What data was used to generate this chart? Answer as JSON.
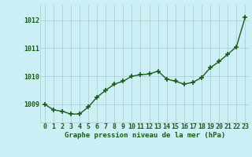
{
  "x": [
    0,
    1,
    2,
    3,
    4,
    5,
    6,
    7,
    8,
    9,
    10,
    11,
    12,
    13,
    14,
    15,
    16,
    17,
    18,
    19,
    20,
    21,
    22,
    23
  ],
  "y": [
    1009.0,
    1008.8,
    1008.75,
    1008.65,
    1008.65,
    1008.9,
    1009.25,
    1009.5,
    1009.72,
    1009.82,
    1010.0,
    1010.05,
    1010.08,
    1010.18,
    1009.9,
    1009.82,
    1009.72,
    1009.78,
    1009.95,
    1010.3,
    1010.52,
    1010.78,
    1011.05,
    1012.1
  ],
  "line_color": "#1a5c1a",
  "marker": "+",
  "markersize": 4,
  "markeredgewidth": 1.2,
  "linewidth": 1.0,
  "bg_color": "#cceef5",
  "grid_color": "#b0c8cc",
  "xlabel": "Graphe pression niveau de la mer (hPa)",
  "xlabel_color": "#1a5c1a",
  "xlabel_fontsize": 6.5,
  "xtick_labels": [
    "0",
    "1",
    "2",
    "3",
    "4",
    "5",
    "6",
    "7",
    "8",
    "9",
    "10",
    "11",
    "12",
    "13",
    "14",
    "15",
    "16",
    "17",
    "18",
    "19",
    "20",
    "21",
    "22",
    "23"
  ],
  "ytick_labels": [
    "1009",
    "1010",
    "1011",
    "1012"
  ],
  "ytick_values": [
    1009,
    1010,
    1011,
    1012
  ],
  "ylim": [
    1008.35,
    1012.55
  ],
  "xlim": [
    -0.5,
    23.5
  ],
  "tick_color": "#1a5c1a",
  "tick_fontsize": 6.0
}
